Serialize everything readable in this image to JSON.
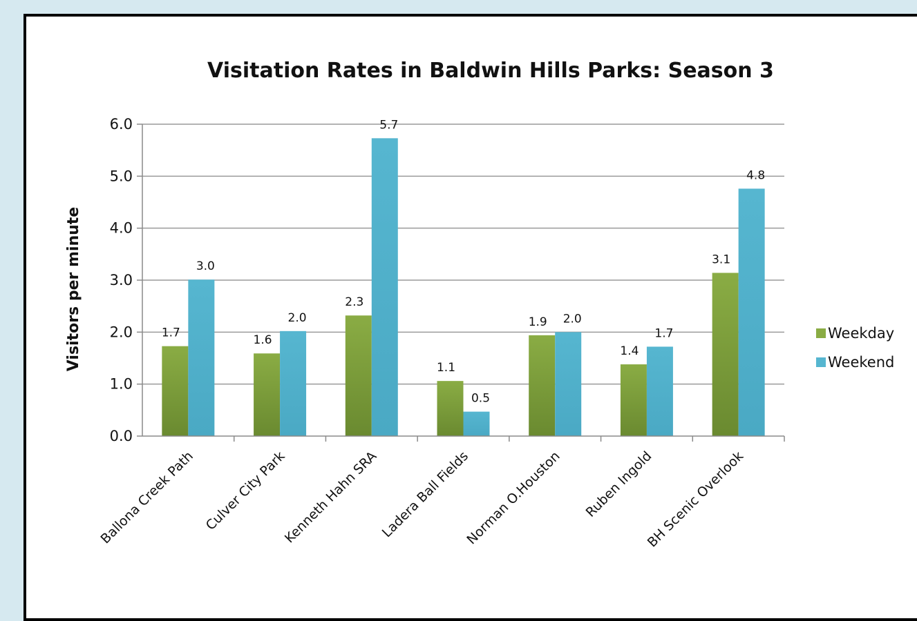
{
  "chart_data": {
    "type": "bar",
    "title": "Visitation Rates in Baldwin Hills Parks: Season 3",
    "xlabel": "",
    "ylabel": "Visitors per minute",
    "ylim": [
      0,
      6
    ],
    "yticks": [
      "0.0",
      "1.0",
      "2.0",
      "3.0",
      "4.0",
      "5.0",
      "6.0"
    ],
    "grid": true,
    "legend_position": "right",
    "categories": [
      "Ballona Creek Path",
      "Culver City Park",
      "Kenneth Hahn SRA",
      "Ladera Ball Fields",
      "Norman O.Houston",
      "Ruben Ingold",
      "BH Scenic Overlook"
    ],
    "series": [
      {
        "name": "Weekday",
        "legend_label": "Weekday",
        "color": "#8aac44",
        "color_dark": "#6a8a30",
        "values": [
          1.73,
          1.59,
          2.32,
          1.06,
          1.94,
          1.38,
          3.14
        ],
        "labels": [
          "1.7",
          "1.6",
          "2.3",
          "1.1",
          "1.9",
          "1.4",
          "3.1"
        ]
      },
      {
        "name": "Weekend",
        "legend_label": "Weekend",
        "color": "#56b6d0",
        "color_dark": "#4aa9c4",
        "values": [
          3.01,
          2.02,
          5.73,
          0.47,
          2.0,
          1.72,
          4.76
        ],
        "labels": [
          "3.0",
          "2.0",
          "5.7",
          "0.5",
          "2.0",
          "1.7",
          "4.8"
        ]
      }
    ]
  }
}
